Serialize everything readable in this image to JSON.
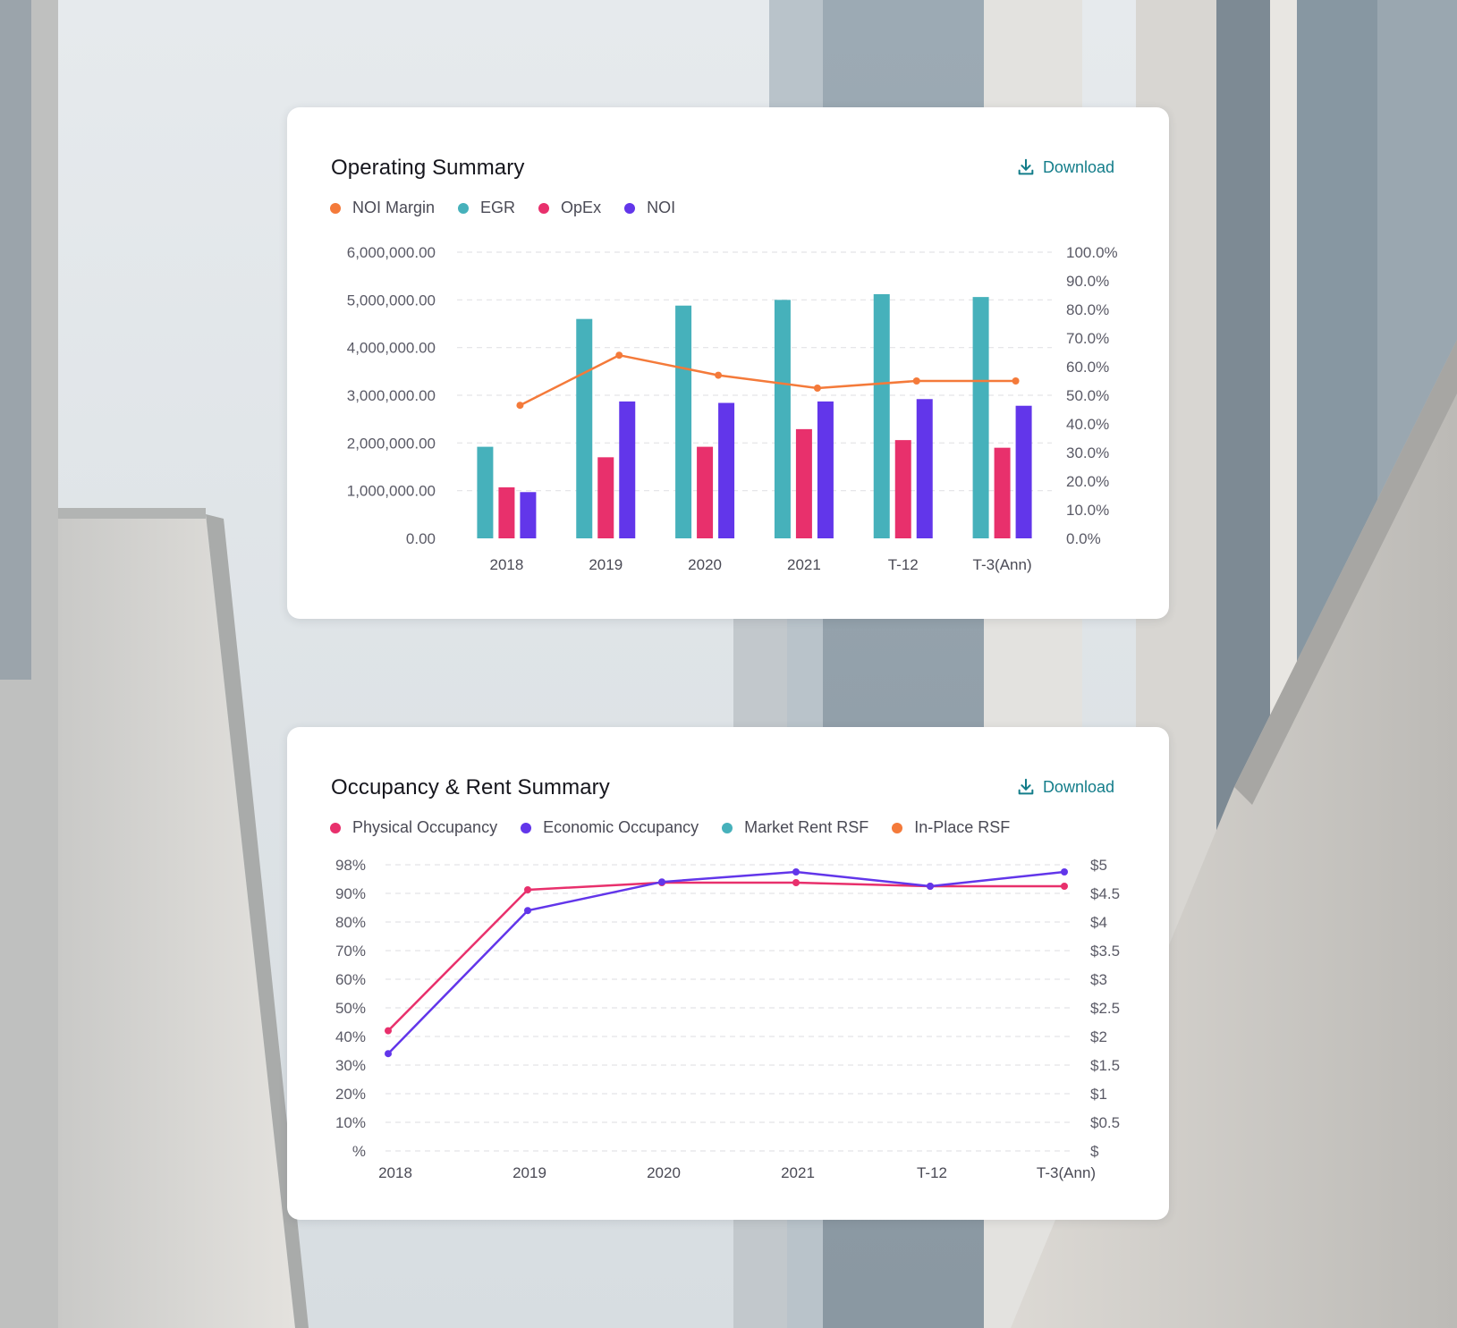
{
  "operating_summary": {
    "title": "Operating Summary",
    "download_label": "Download",
    "legend": [
      {
        "label": "NOI Margin",
        "color": "#f47a3a"
      },
      {
        "label": "EGR",
        "color": "#46b1bb"
      },
      {
        "label": "OpEx",
        "color": "#e8306c"
      },
      {
        "label": "NOI",
        "color": "#6236ea"
      }
    ]
  },
  "occupancy_summary": {
    "title": "Occupancy & Rent Summary",
    "download_label": "Download",
    "legend": [
      {
        "label": "Physical Occupancy",
        "color": "#e8306c"
      },
      {
        "label": "Economic Occupancy",
        "color": "#6236ea"
      },
      {
        "label": "Market Rent RSF",
        "color": "#46b1bb"
      },
      {
        "label": "In-Place RSF",
        "color": "#f47a3a"
      }
    ]
  },
  "chart_data": [
    {
      "type": "bar",
      "title": "Operating Summary",
      "categories": [
        "2018",
        "2019",
        "2020",
        "2021",
        "T-12",
        "T-3(Ann)"
      ],
      "series": [
        {
          "name": "EGR",
          "color": "#46b1bb",
          "values": [
            1920000,
            4600000,
            4880000,
            5000000,
            5120000,
            5060000
          ]
        },
        {
          "name": "OpEx",
          "color": "#e8306c",
          "values": [
            1070000,
            1700000,
            1920000,
            2290000,
            2060000,
            1900000
          ]
        },
        {
          "name": "NOI",
          "color": "#6236ea",
          "values": [
            970000,
            2870000,
            2840000,
            2870000,
            2920000,
            2780000
          ]
        },
        {
          "name": "NOI Margin",
          "color": "#f47a3a",
          "type": "line",
          "axis": "right",
          "values": [
            46.5,
            64,
            57,
            52.5,
            55,
            55
          ]
        }
      ],
      "y_ticks": [
        "0.00",
        "1,000,000.00",
        "2,000,000.00",
        "3,000,000.00",
        "4,000,000.00",
        "5,000,000.00",
        "6,000,000.00"
      ],
      "y2_ticks": [
        "0.0%",
        "10.0%",
        "20.0%",
        "30.0%",
        "40.0%",
        "50.0%",
        "60.0%",
        "70.0%",
        "80.0%",
        "90.0%",
        "100.0%"
      ],
      "ylim": [
        0,
        6000000
      ],
      "y2lim": [
        0,
        100
      ],
      "grid": true,
      "legend": "top-left"
    },
    {
      "type": "line",
      "title": "Occupancy & Rent Summary",
      "categories": [
        "2018",
        "2019",
        "2020",
        "2021",
        "T-12",
        "T-3(Ann)"
      ],
      "series": [
        {
          "name": "Physical Occupancy",
          "color": "#e8306c",
          "values": [
            42,
            91,
            93,
            93,
            92,
            92
          ]
        },
        {
          "name": "Economic Occupancy",
          "color": "#6236ea",
          "values": [
            34,
            84,
            93.2,
            96,
            92,
            96
          ]
        }
      ],
      "y_ticks": [
        "%",
        "10%",
        "20%",
        "30%",
        "40%",
        "50%",
        "60%",
        "70%",
        "80%",
        "90%",
        "98%"
      ],
      "y2_ticks": [
        "$",
        "$0.5",
        "$1",
        "$1.5",
        "$2",
        "$2.5",
        "$3",
        "$3.5",
        "$4",
        "$4.5",
        "$5"
      ],
      "grid": true,
      "legend": "top-left"
    }
  ]
}
